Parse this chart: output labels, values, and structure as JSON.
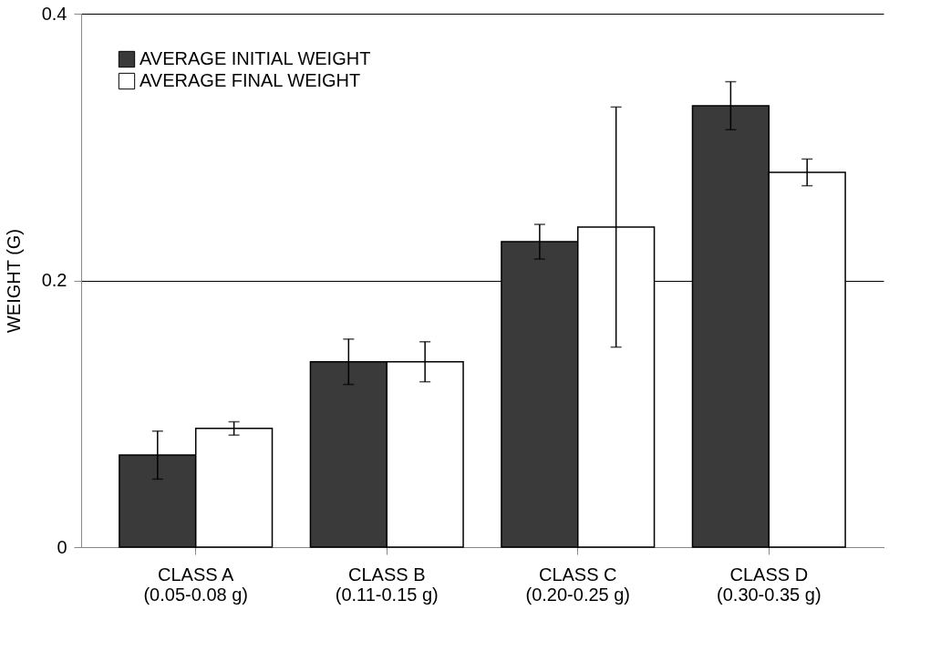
{
  "chart_data": {
    "type": "bar",
    "ylabel": "WEIGHT (G)",
    "categories": [
      "CLASS A\n(0.05-0.08 g)",
      "CLASS B\n(0.11-0.15 g)",
      "CLASS C\n(0.20-0.25 g)",
      "CLASS D\n(0.30-0.35 g)"
    ],
    "series": [
      {
        "name": "AVERAGE INITIAL WEIGHT",
        "color": "#3a3a3a",
        "values": [
          0.069,
          0.139,
          0.229,
          0.331
        ],
        "errors": [
          0.018,
          0.017,
          0.013,
          0.018
        ]
      },
      {
        "name": "AVERAGE FINAL WEIGHT",
        "color": "#ffffff",
        "values": [
          0.089,
          0.139,
          0.24,
          0.281
        ],
        "errors": [
          0.005,
          0.015,
          0.09,
          0.01
        ]
      }
    ],
    "ylim": [
      0,
      0.4
    ],
    "yticks": [
      0,
      0.2,
      0.4
    ],
    "grid": "y",
    "legend": "top left"
  }
}
